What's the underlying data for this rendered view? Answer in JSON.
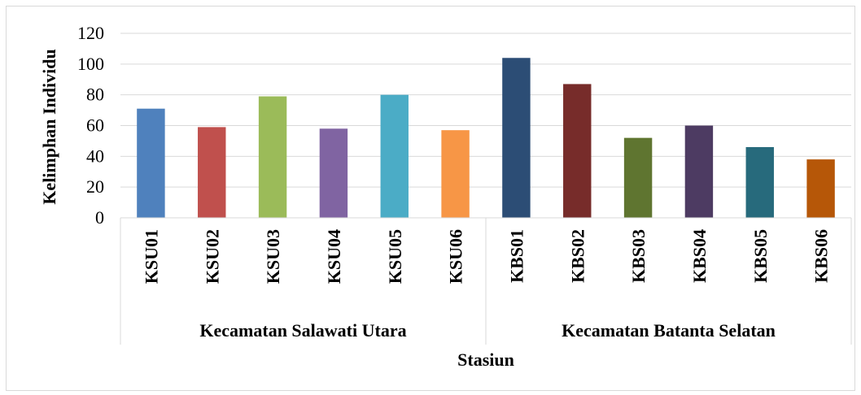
{
  "chart_data": {
    "type": "bar",
    "xlabel": "Stasiun",
    "ylabel": "Kelimphan  Individu",
    "ylim": [
      0,
      120
    ],
    "yticks": [
      0,
      20,
      40,
      60,
      80,
      100,
      120
    ],
    "grid": true,
    "legend": "none",
    "groups": [
      {
        "label": "Kecamatan Salawati Utara",
        "categories": [
          "KSU01",
          "KSU02",
          "KSU03",
          "KSU04",
          "KSU05",
          "KSU06"
        ],
        "values": [
          71,
          59,
          79,
          58,
          80,
          57
        ],
        "colors": [
          "#4f81bd",
          "#c0504d",
          "#9bbb59",
          "#8064a2",
          "#4bacc6",
          "#f79646"
        ]
      },
      {
        "label": "Kecamatan Batanta Selatan",
        "categories": [
          "KBS01",
          "KBS02",
          "KBS03",
          "KBS04",
          "KBS05",
          "KBS06"
        ],
        "values": [
          104,
          87,
          52,
          60,
          46,
          38
        ],
        "colors": [
          "#2c4d75",
          "#772c2a",
          "#5f7530",
          "#4d3b62",
          "#276a7c",
          "#b65708"
        ]
      }
    ]
  }
}
